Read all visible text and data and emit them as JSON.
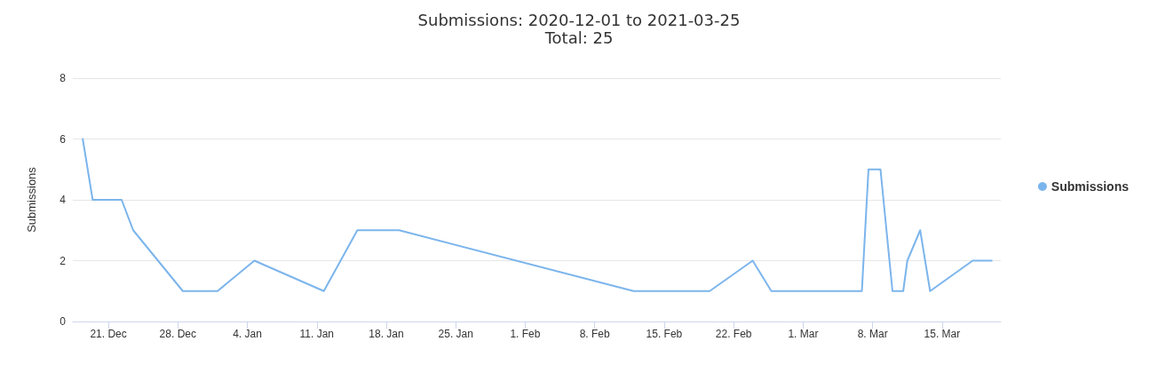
{
  "chart_data": {
    "type": "line",
    "title": "Submissions: 2020-12-01 to 2021-03-25",
    "subtitle": "Total: 25",
    "ylabel": "Submissions",
    "x": [
      "2020-12-18T10:00",
      "2020-12-19T10:00",
      "2020-12-22T08:00",
      "2020-12-23T12:00",
      "2020-12-28T12:00",
      "2021-01-01T00:00",
      "2021-01-04T17:00",
      "2021-01-11T17:00",
      "2021-01-15T02:00",
      "2021-01-19T07:00",
      "2021-02-11T22:00",
      "2021-02-19T14:00",
      "2021-02-23T22:00",
      "2021-02-25T19:00",
      "2021-03-06T22:00",
      "2021-03-07T14:00",
      "2021-03-08T19:00",
      "2021-03-10T00:00",
      "2021-03-11T02:00",
      "2021-03-11T12:00",
      "2021-03-12T19:00",
      "2021-03-13T19:00",
      "2021-03-18T02:00",
      "2021-03-20T00:00"
    ],
    "series": [
      {
        "name": "Submissions",
        "color": "#7cb5ec",
        "values": [
          6,
          4,
          4,
          3,
          1,
          1,
          2,
          1,
          3,
          3,
          1,
          1,
          2,
          1,
          1,
          5,
          5,
          1,
          1,
          2,
          3,
          1,
          2,
          2
        ]
      }
    ],
    "xlim": [
      "2020-12-17T10:00",
      "2021-03-20T22:00"
    ],
    "xticks": [
      {
        "value": "2020-12-21",
        "label": "21. Dec"
      },
      {
        "value": "2020-12-28",
        "label": "28. Dec"
      },
      {
        "value": "2021-01-04",
        "label": "4. Jan"
      },
      {
        "value": "2021-01-11",
        "label": "11. Jan"
      },
      {
        "value": "2021-01-18",
        "label": "18. Jan"
      },
      {
        "value": "2021-01-25",
        "label": "25. Jan"
      },
      {
        "value": "2021-02-01",
        "label": "1. Feb"
      },
      {
        "value": "2021-02-08",
        "label": "8. Feb"
      },
      {
        "value": "2021-02-15",
        "label": "15. Feb"
      },
      {
        "value": "2021-02-22",
        "label": "22. Feb"
      },
      {
        "value": "2021-03-01",
        "label": "1. Mar"
      },
      {
        "value": "2021-03-08",
        "label": "8. Mar"
      },
      {
        "value": "2021-03-15",
        "label": "15. Mar"
      }
    ],
    "ylim": [
      0,
      8
    ],
    "yticks": [
      0,
      2,
      4,
      6,
      8
    ],
    "grid": "y",
    "legend": "right",
    "marker": "none",
    "line_style": "solid"
  }
}
